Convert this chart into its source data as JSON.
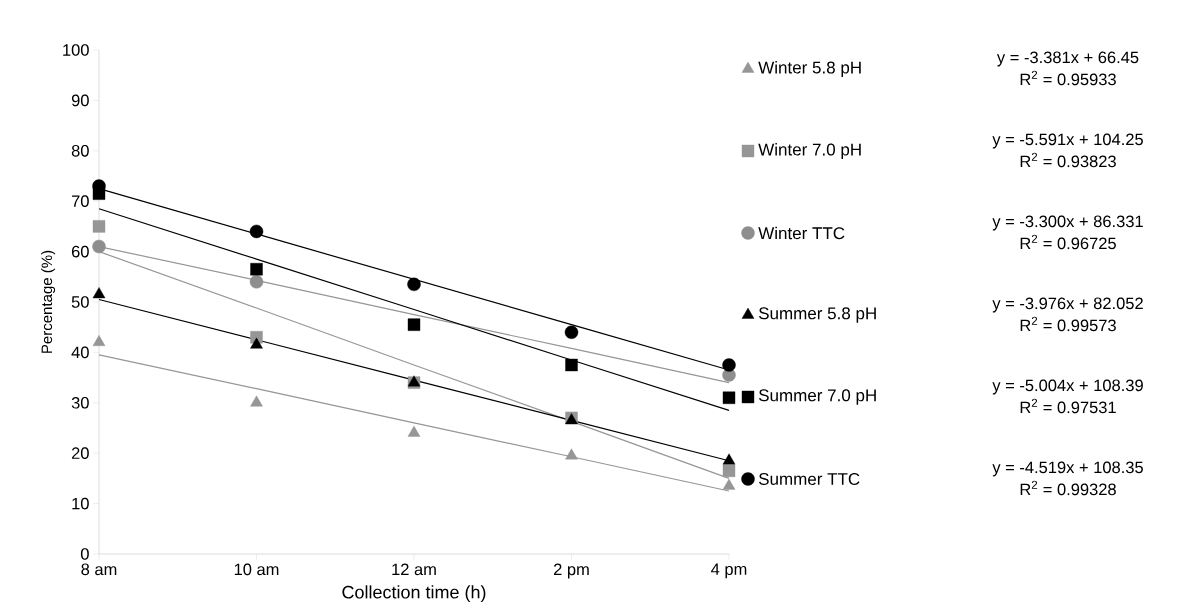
{
  "chart_data": {
    "type": "scatter",
    "xlabel": "Collection time (h)",
    "ylabel": "Percentage (%)",
    "categories": [
      "8 am",
      "10 am",
      "12 am",
      "2 pm",
      "4 pm"
    ],
    "ylim": [
      0,
      100
    ],
    "yticks": [
      0,
      10,
      20,
      30,
      40,
      50,
      60,
      70,
      80,
      90,
      100
    ],
    "legend": "right",
    "series": [
      {
        "name": "Winter 5.8 pH",
        "marker": "triangle",
        "color": "#969696",
        "values": [
          42,
          30,
          24,
          19.5,
          13.5
        ]
      },
      {
        "name": "Winter 7.0 pH",
        "marker": "square",
        "color": "#969696",
        "values": [
          65,
          43,
          34,
          27,
          16.5
        ]
      },
      {
        "name": "Winter TTC",
        "marker": "circle",
        "color": "#8e8e8e",
        "values": [
          61,
          54,
          null,
          null,
          35.5
        ]
      },
      {
        "name": "Summer 5.8 pH",
        "marker": "triangle",
        "color": "#000000",
        "values": [
          51.5,
          41.5,
          34,
          26.5,
          18.5
        ]
      },
      {
        "name": "Summer 7.0 pH",
        "marker": "square",
        "color": "#000000",
        "values": [
          71.5,
          56.5,
          45.5,
          37.5,
          31
        ]
      },
      {
        "name": "Summer TTC",
        "marker": "circle",
        "color": "#000000",
        "values": [
          73,
          64,
          53.5,
          44,
          37.5
        ]
      },
      {
        "type": "line",
        "color": "#969696",
        "values": [
          39.5,
          32.8,
          26,
          19.3,
          12.5
        ]
      },
      {
        "type": "line",
        "color": "#969696",
        "values": [
          60,
          48.8,
          37.5,
          26.3,
          15
        ]
      },
      {
        "type": "line",
        "color": "#969696",
        "values": [
          61,
          54.3,
          47.5,
          40.8,
          34
        ]
      },
      {
        "type": "line",
        "color": "#000000",
        "values": [
          50.5,
          42.5,
          34.5,
          26.5,
          18.5
        ]
      },
      {
        "type": "line",
        "color": "#000000",
        "values": [
          68.5,
          58.5,
          48.5,
          38.5,
          28.5
        ]
      },
      {
        "type": "line",
        "color": "#000000",
        "values": [
          72.5,
          63.5,
          54.5,
          45.5,
          36.5
        ]
      }
    ],
    "annotations": [
      "y = -3.381x + 66.45",
      "R$^{2}$ = 0.95933",
      "y = -5.591x + 104.25",
      "R$^{2}$ = 0.93823",
      "y = -3.300x + 86.331",
      "R$^{2}$ = 0.96725",
      "y = -3.976x + 82.052",
      "R$^{2}$ = 0.99573",
      "y = -5.004x + 108.39",
      "R$^{2}$ = 0.97531",
      "y = -4.519x + 108.35",
      "R$^{2}$ = 0.99328"
    ]
  }
}
